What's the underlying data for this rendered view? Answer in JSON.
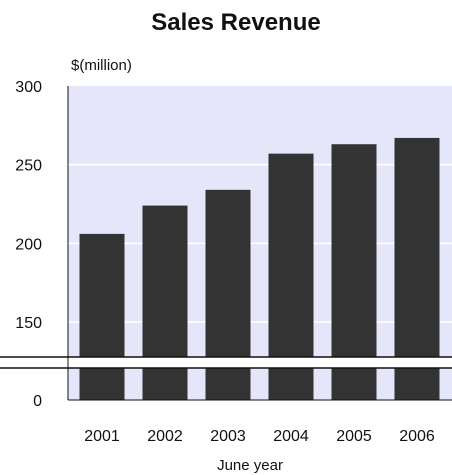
{
  "chart_data": {
    "type": "bar",
    "title": "Sales Revenue",
    "unit_label": "$(million)",
    "xlabel": "June year",
    "ylabel": "",
    "categories": [
      "2001",
      "2002",
      "2003",
      "2004",
      "2005",
      "2006"
    ],
    "values": [
      206,
      224,
      234,
      257,
      263,
      267
    ],
    "y_ticks": [
      "300",
      "250",
      "200",
      "150",
      "0"
    ],
    "ylim": [
      0,
      300
    ],
    "axis_break": true,
    "grid": true,
    "legend": "none",
    "colors": {
      "bar": "#333333",
      "plot_background": "#e6e6fa",
      "gridline": "#ffffff"
    }
  }
}
